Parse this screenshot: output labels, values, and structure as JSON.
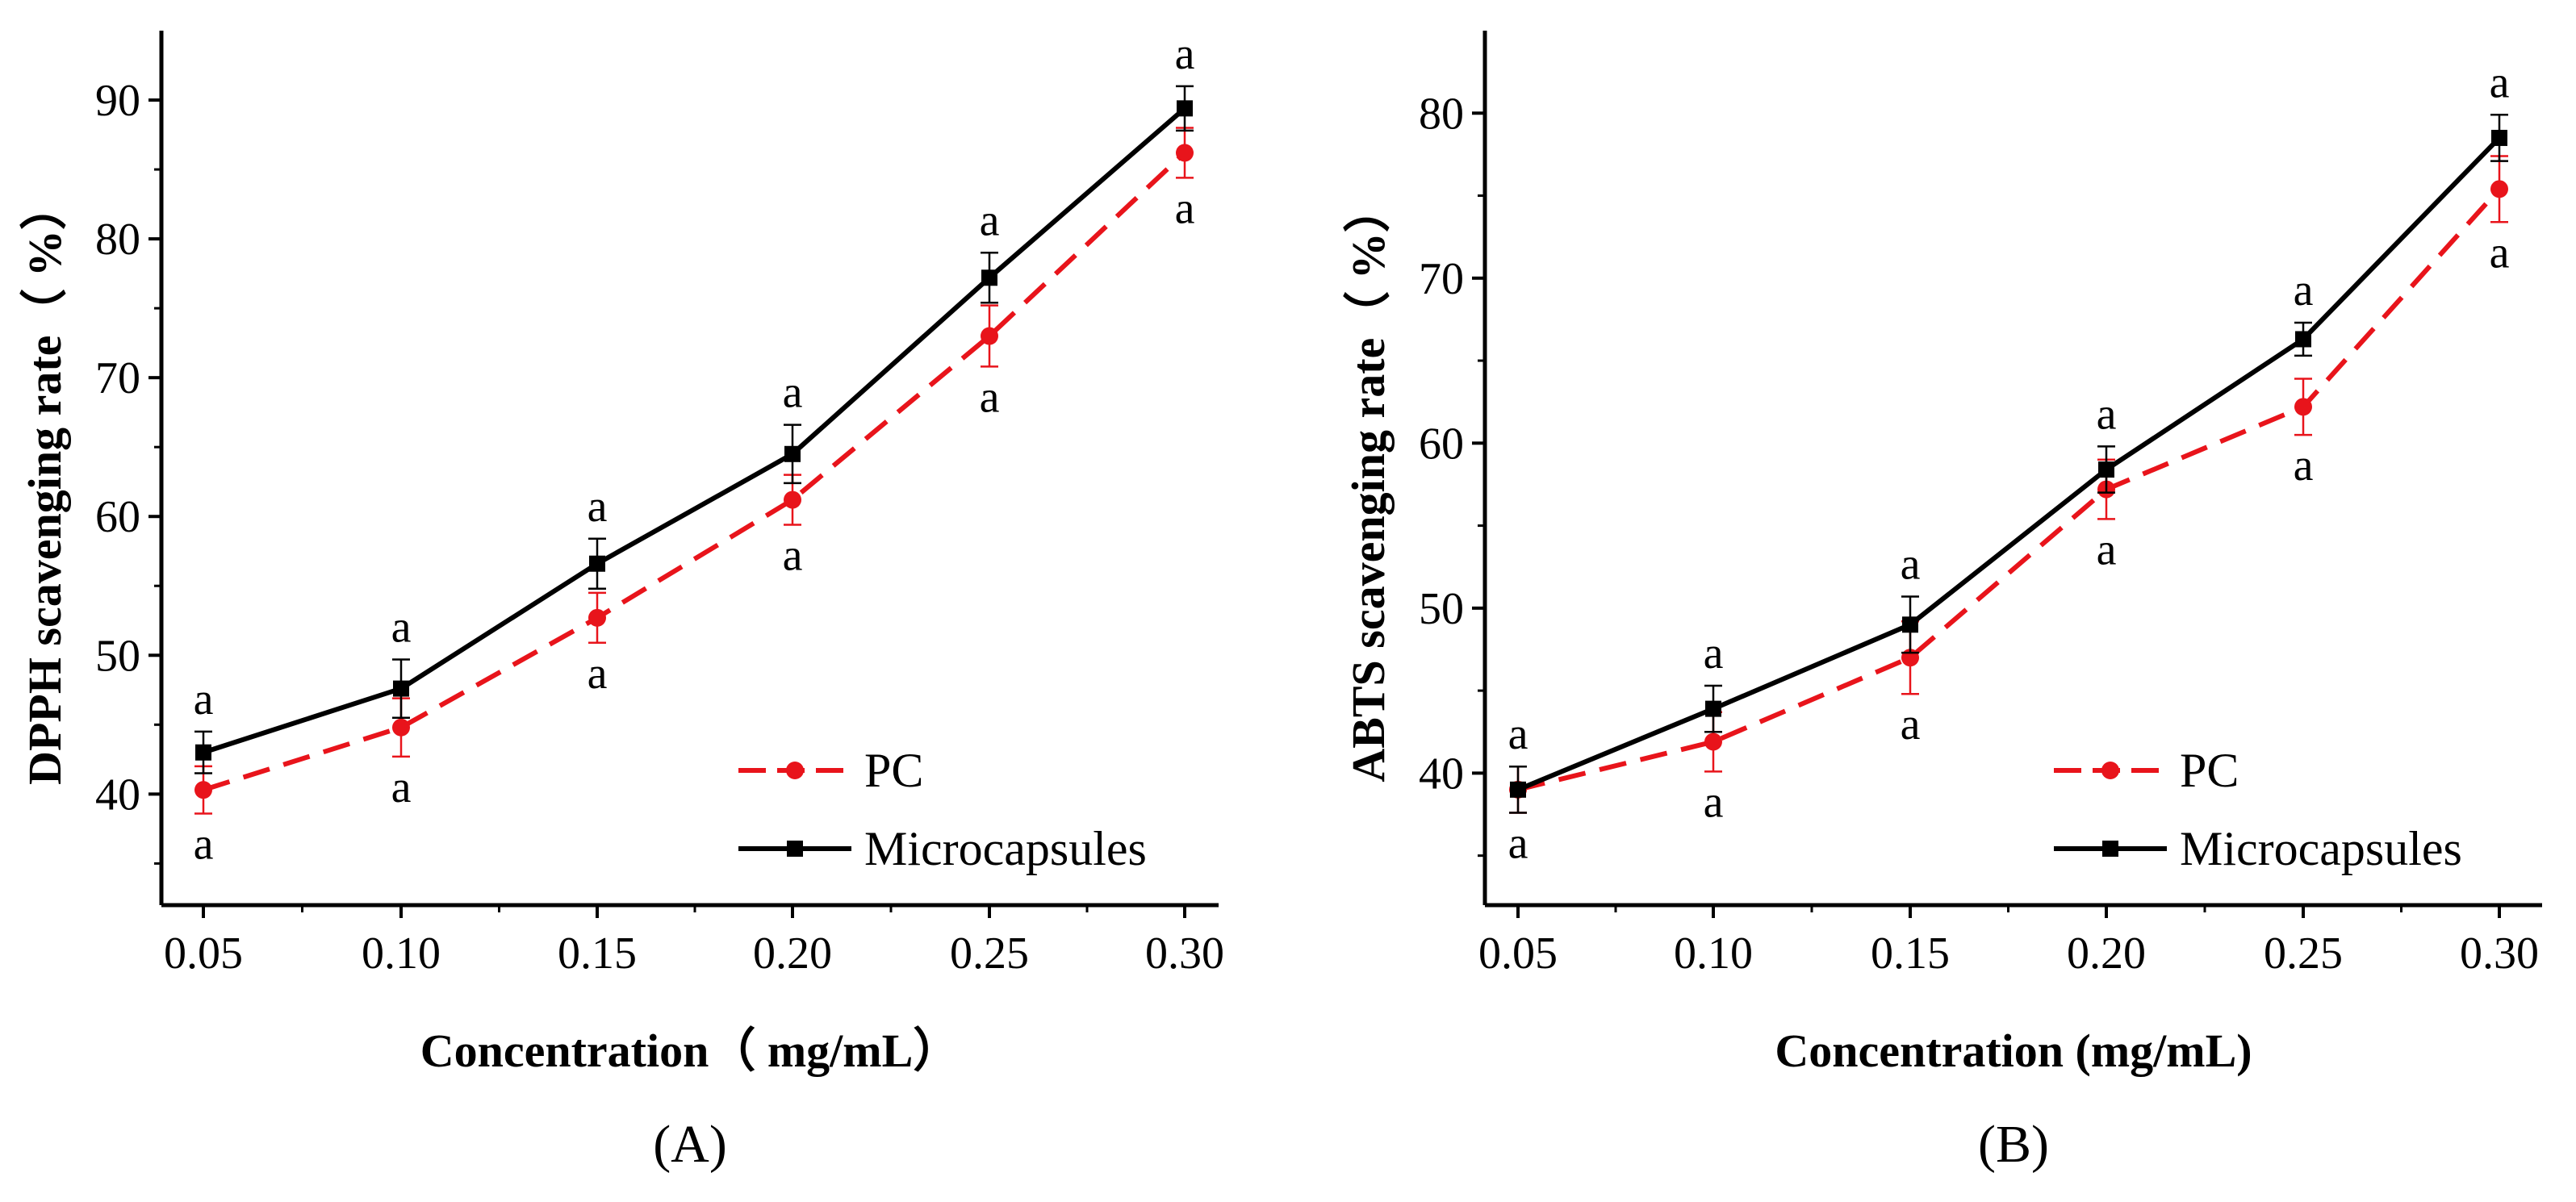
{
  "chart_data": [
    {
      "type": "line",
      "panel_label": "(A)",
      "xlabel": "Concentration（ mg/mL）",
      "ylabel": "DPPH  scavenging rate（ %）",
      "x": [
        0.05,
        0.1,
        0.15,
        0.2,
        0.25,
        0.3
      ],
      "x_tick_labels": [
        "0.05",
        "0.10",
        "0.15",
        "0.20",
        "0.25",
        "0.30"
      ],
      "xlim": [
        0.04,
        0.31
      ],
      "ylim": [
        32,
        95
      ],
      "y_ticks": [
        40,
        50,
        60,
        70,
        80,
        90
      ],
      "y_tick_labels": [
        "40",
        "50",
        "60",
        "70",
        "80",
        "90"
      ],
      "grid": false,
      "legend_position": "bottom-right",
      "series": [
        {
          "name": "PC",
          "color": "#e8141b",
          "line_style": "dashed",
          "marker": "circle",
          "values": [
            40.3,
            44.8,
            52.7,
            61.2,
            73.0,
            86.2
          ],
          "errors": [
            1.7,
            2.1,
            1.8,
            1.8,
            2.2,
            1.8
          ],
          "sig_labels": [
            "a",
            "a",
            "a",
            "a",
            "a",
            "a"
          ],
          "label_position": "below"
        },
        {
          "name": "Microcapsules",
          "color": "#000000",
          "line_style": "solid",
          "marker": "square",
          "values": [
            43.0,
            47.6,
            56.6,
            64.5,
            77.2,
            89.4
          ],
          "errors": [
            1.5,
            2.1,
            1.8,
            2.1,
            1.8,
            1.6
          ],
          "sig_labels": [
            "a",
            "a",
            "a",
            "a",
            "a",
            "a"
          ],
          "label_position": "above"
        }
      ]
    },
    {
      "type": "line",
      "panel_label": "(B)",
      "xlabel": "Concentration (mg/mL)",
      "ylabel": "ABTS  scavenging rate（ %）",
      "x": [
        0.05,
        0.1,
        0.15,
        0.2,
        0.25,
        0.3
      ],
      "x_tick_labels": [
        "0.05",
        "0.10",
        "0.15",
        "0.20",
        "0.25",
        "0.30"
      ],
      "xlim": [
        0.04,
        0.31
      ],
      "ylim": [
        32,
        85
      ],
      "y_ticks": [
        40,
        50,
        60,
        70,
        80
      ],
      "y_tick_labels": [
        "40",
        "50",
        "60",
        "70",
        "80"
      ],
      "grid": false,
      "legend_position": "bottom-right",
      "series": [
        {
          "name": "PC",
          "color": "#e8141b",
          "line_style": "dashed",
          "marker": "circle",
          "values": [
            39.0,
            41.9,
            47.0,
            57.2,
            62.2,
            75.4
          ],
          "errors": [
            1.4,
            1.8,
            2.2,
            1.8,
            1.7,
            2.0
          ],
          "sig_labels": [
            "a",
            "a",
            "a",
            "a",
            "a",
            "a"
          ],
          "label_position": "below"
        },
        {
          "name": "Microcapsules",
          "color": "#000000",
          "line_style": "solid",
          "marker": "square",
          "values": [
            39.0,
            43.9,
            49.0,
            58.4,
            66.3,
            78.5
          ],
          "errors": [
            1.4,
            1.4,
            1.7,
            1.4,
            1.0,
            1.4
          ],
          "sig_labels": [
            "a",
            "a",
            "a",
            "a",
            "a",
            "a"
          ],
          "label_position": "above"
        }
      ]
    }
  ]
}
